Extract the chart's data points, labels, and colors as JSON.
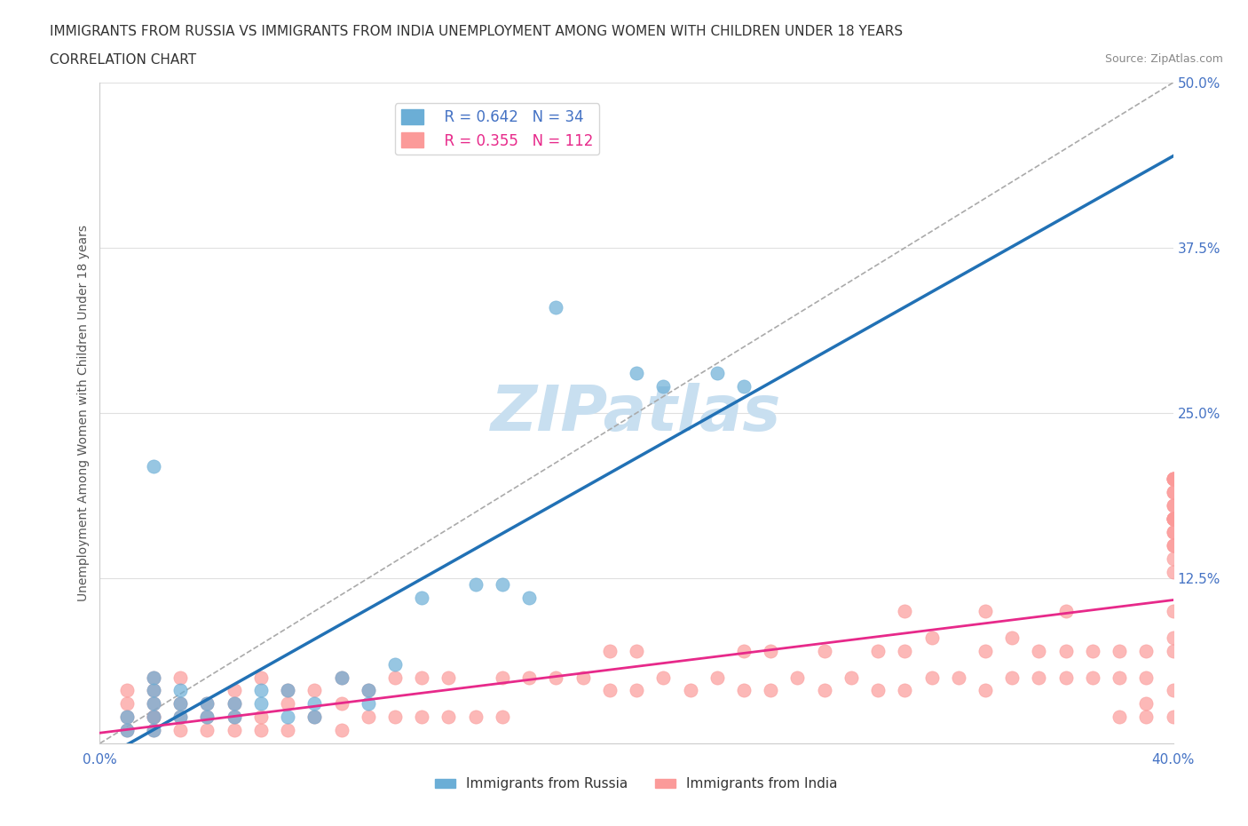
{
  "title_line1": "IMMIGRANTS FROM RUSSIA VS IMMIGRANTS FROM INDIA UNEMPLOYMENT AMONG WOMEN WITH CHILDREN UNDER 18 YEARS",
  "title_line2": "CORRELATION CHART",
  "source_text": "Source: ZipAtlas.com",
  "xlabel": "",
  "ylabel": "Unemployment Among Women with Children Under 18 years",
  "xlim": [
    0.0,
    0.4
  ],
  "ylim": [
    0.0,
    0.5
  ],
  "xticks": [
    0.0,
    0.1,
    0.2,
    0.3,
    0.4
  ],
  "xtick_labels": [
    "0.0%",
    "",
    "",
    "",
    "40.0%"
  ],
  "yticks": [
    0.0,
    0.125,
    0.25,
    0.375,
    0.5
  ],
  "ytick_labels": [
    "",
    "12.5%",
    "25.0%",
    "37.5%",
    "50.0%"
  ],
  "russia_color": "#6baed6",
  "russia_edge": "#4292c6",
  "india_color": "#fb9a99",
  "india_edge": "#e31a1c",
  "russia_R": 0.642,
  "russia_N": 34,
  "india_R": 0.355,
  "india_N": 112,
  "russia_scatter_x": [
    0.01,
    0.01,
    0.02,
    0.02,
    0.02,
    0.02,
    0.02,
    0.02,
    0.03,
    0.03,
    0.03,
    0.04,
    0.04,
    0.05,
    0.05,
    0.06,
    0.06,
    0.07,
    0.07,
    0.08,
    0.08,
    0.09,
    0.1,
    0.1,
    0.11,
    0.12,
    0.14,
    0.15,
    0.16,
    0.17,
    0.2,
    0.21,
    0.23,
    0.24
  ],
  "russia_scatter_y": [
    0.01,
    0.02,
    0.01,
    0.02,
    0.03,
    0.04,
    0.05,
    0.21,
    0.02,
    0.03,
    0.04,
    0.02,
    0.03,
    0.02,
    0.03,
    0.03,
    0.04,
    0.02,
    0.04,
    0.02,
    0.03,
    0.05,
    0.03,
    0.04,
    0.06,
    0.11,
    0.12,
    0.12,
    0.11,
    0.33,
    0.28,
    0.27,
    0.28,
    0.27
  ],
  "india_scatter_x": [
    0.01,
    0.01,
    0.01,
    0.01,
    0.02,
    0.02,
    0.02,
    0.02,
    0.02,
    0.02,
    0.03,
    0.03,
    0.03,
    0.03,
    0.04,
    0.04,
    0.04,
    0.05,
    0.05,
    0.05,
    0.05,
    0.06,
    0.06,
    0.06,
    0.07,
    0.07,
    0.07,
    0.08,
    0.08,
    0.09,
    0.09,
    0.09,
    0.1,
    0.1,
    0.11,
    0.11,
    0.12,
    0.12,
    0.13,
    0.13,
    0.14,
    0.15,
    0.15,
    0.16,
    0.17,
    0.18,
    0.19,
    0.19,
    0.2,
    0.2,
    0.21,
    0.22,
    0.23,
    0.24,
    0.24,
    0.25,
    0.25,
    0.26,
    0.27,
    0.27,
    0.28,
    0.29,
    0.29,
    0.3,
    0.3,
    0.3,
    0.31,
    0.31,
    0.32,
    0.33,
    0.33,
    0.33,
    0.34,
    0.34,
    0.35,
    0.35,
    0.36,
    0.36,
    0.36,
    0.37,
    0.37,
    0.38,
    0.38,
    0.38,
    0.39,
    0.39,
    0.39,
    0.39,
    0.4,
    0.4,
    0.4,
    0.4,
    0.4,
    0.4,
    0.4,
    0.4,
    0.4,
    0.4,
    0.4,
    0.4,
    0.4,
    0.4,
    0.4,
    0.4,
    0.4,
    0.4,
    0.4,
    0.4,
    0.4,
    0.4,
    0.4,
    0.4
  ],
  "india_scatter_y": [
    0.01,
    0.02,
    0.03,
    0.04,
    0.01,
    0.02,
    0.03,
    0.04,
    0.05,
    0.02,
    0.01,
    0.02,
    0.03,
    0.05,
    0.01,
    0.02,
    0.03,
    0.01,
    0.02,
    0.03,
    0.04,
    0.01,
    0.02,
    0.05,
    0.01,
    0.03,
    0.04,
    0.02,
    0.04,
    0.01,
    0.03,
    0.05,
    0.02,
    0.04,
    0.02,
    0.05,
    0.02,
    0.05,
    0.02,
    0.05,
    0.02,
    0.05,
    0.02,
    0.05,
    0.05,
    0.05,
    0.04,
    0.07,
    0.04,
    0.07,
    0.05,
    0.04,
    0.05,
    0.04,
    0.07,
    0.04,
    0.07,
    0.05,
    0.04,
    0.07,
    0.05,
    0.04,
    0.07,
    0.04,
    0.07,
    0.1,
    0.05,
    0.08,
    0.05,
    0.04,
    0.07,
    0.1,
    0.05,
    0.08,
    0.05,
    0.07,
    0.05,
    0.07,
    0.1,
    0.05,
    0.07,
    0.02,
    0.05,
    0.07,
    0.02,
    0.03,
    0.05,
    0.07,
    0.08,
    0.02,
    0.04,
    0.07,
    0.1,
    0.13,
    0.14,
    0.15,
    0.15,
    0.16,
    0.17,
    0.16,
    0.17,
    0.17,
    0.17,
    0.17,
    0.18,
    0.18,
    0.2,
    0.2,
    0.19,
    0.2,
    0.2,
    0.19
  ],
  "watermark": "ZIPatlas",
  "watermark_color": "#c8dff0",
  "background_color": "#ffffff",
  "grid_color": "#e0e0e0"
}
